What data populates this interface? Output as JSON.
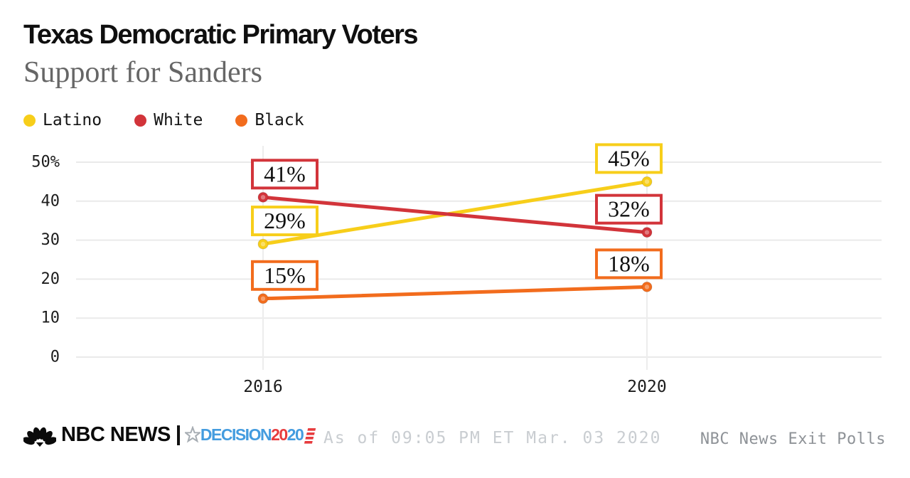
{
  "header": {
    "title": "Texas Democratic Primary Voters",
    "subtitle": "Support for Sanders"
  },
  "chart_data": {
    "type": "line",
    "title": "Texas Democratic Primary Voters",
    "subtitle": "Support for Sanders",
    "categories": [
      "2016",
      "2020"
    ],
    "series": [
      {
        "name": "Latino",
        "color": "#F7CE1A",
        "values": [
          29,
          45
        ],
        "point_labels": [
          "29%",
          "45%"
        ]
      },
      {
        "name": "White",
        "color": "#D2343A",
        "values": [
          41,
          32
        ],
        "point_labels": [
          "41%",
          "32%"
        ]
      },
      {
        "name": "Black",
        "color": "#F26C1D",
        "values": [
          15,
          18
        ],
        "point_labels": [
          "15%",
          "18%"
        ]
      }
    ],
    "xlabel": "",
    "ylabel": "",
    "ylim": [
      0,
      50
    ],
    "yticks": [
      {
        "value": 0,
        "label": "0"
      },
      {
        "value": 10,
        "label": "10"
      },
      {
        "value": 20,
        "label": "20"
      },
      {
        "value": 30,
        "label": "30"
      },
      {
        "value": 40,
        "label": "40"
      },
      {
        "value": 50,
        "label": "50%"
      }
    ],
    "grid": true,
    "legend_position": "top-left"
  },
  "footer": {
    "nbc_wordmark": "NBC NEWS",
    "decision": {
      "word": "DECISION",
      "year_red": "20",
      "year_blue": "20"
    },
    "as_of": "As of 09:05 PM ET Mar. 03 2020",
    "source": "NBC News Exit Polls"
  },
  "colors": {
    "latino": "#F7CE1A",
    "white_series": "#D2343A",
    "black_series": "#F26C1D",
    "grid": "#EAEAEA",
    "axis_text": "#1C1C1C",
    "subtitle_text": "#666666",
    "as_of_text": "#C9CDD1",
    "source_text": "#8E9297",
    "decision_blue": "#449CDF",
    "decision_red": "#E73C3E"
  }
}
